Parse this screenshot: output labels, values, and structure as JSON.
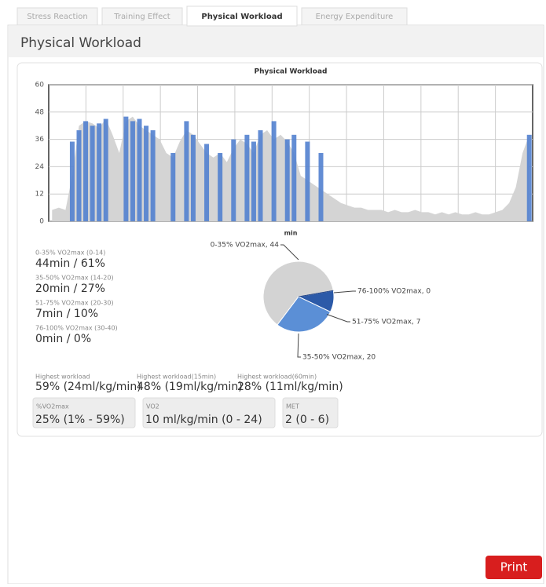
{
  "tabs": [
    "Stress Reaction",
    "Training Effect",
    "Physical Workload",
    "Energy Expenditure"
  ],
  "panel_title": "Physical Workload",
  "chart_data": [
    {
      "type": "area",
      "title": "Physical Workload",
      "xlabel": "min",
      "ylim": [
        0,
        60
      ],
      "yticks": [
        0,
        12,
        24,
        36,
        48,
        60
      ],
      "grid": true,
      "series": [
        {
          "color": "#d4d4d4",
          "type": "area",
          "values": [
            5,
            6,
            5,
            20,
            42,
            44,
            43,
            41,
            45,
            38,
            30,
            44,
            46,
            42,
            40,
            38,
            36,
            30,
            28,
            35,
            40,
            38,
            34,
            30,
            28,
            30,
            26,
            32,
            36,
            34,
            30,
            38,
            40,
            36,
            38,
            35,
            30,
            20,
            18,
            16,
            14,
            12,
            10,
            8,
            7,
            6,
            6,
            5,
            5,
            5,
            4,
            5,
            4,
            4,
            5,
            4,
            4,
            3,
            4,
            3,
            4,
            3,
            3,
            4,
            3,
            3,
            4,
            5,
            8,
            15,
            30,
            38
          ]
        },
        {
          "color": "#5281cf",
          "type": "bar",
          "values": [
            null,
            null,
            null,
            35,
            40,
            44,
            42,
            43,
            45,
            null,
            null,
            46,
            44,
            45,
            42,
            40,
            null,
            null,
            30,
            null,
            44,
            38,
            null,
            34,
            null,
            30,
            null,
            36,
            null,
            38,
            35,
            40,
            null,
            44,
            null,
            36,
            38,
            null,
            35,
            null,
            30,
            null,
            null,
            null,
            null,
            null,
            null,
            null,
            null,
            null,
            null,
            null,
            null,
            null,
            null,
            null,
            null,
            null,
            null,
            null,
            null,
            null,
            null,
            null,
            null,
            null,
            null,
            null,
            null,
            null,
            null,
            38
          ]
        }
      ]
    },
    {
      "type": "pie",
      "values": [
        44,
        20,
        7,
        0
      ],
      "value_labels": [
        "0-35% VO2max, 44",
        "35-50% VO2max, 20",
        "51-75% VO2max, 7",
        "76-100% VO2max, 0"
      ],
      "colors": [
        "#d3d3d3",
        "#5b8fd6",
        "#2c5aa8",
        "#1e3f80"
      ]
    }
  ],
  "zones": [
    {
      "label": "0-35% VO2max (0-14)",
      "value": "44min / 61%"
    },
    {
      "label": "35-50% VO2max (14-20)",
      "value": "20min / 27%"
    },
    {
      "label": "51-75% VO2max (20-30)",
      "value": "7min / 10%"
    },
    {
      "label": "76-100% VO2max (30-40)",
      "value": "0min / 0%"
    }
  ],
  "highest": [
    {
      "label": "Highest workload",
      "value": "59% (24ml/kg/min)"
    },
    {
      "label": "Highest workload(15min)",
      "value": "48% (19ml/kg/min)"
    },
    {
      "label": "Highest workload(60min)",
      "value": "28% (11ml/kg/min)"
    }
  ],
  "boxes": [
    {
      "label": "%VO2max",
      "value": "25% (1% - 59%)"
    },
    {
      "label": "VO2",
      "value": "10 ml/kg/min (0 - 24)"
    },
    {
      "label": "MET",
      "value": "2 (0 - 6)"
    }
  ],
  "print": "Print"
}
